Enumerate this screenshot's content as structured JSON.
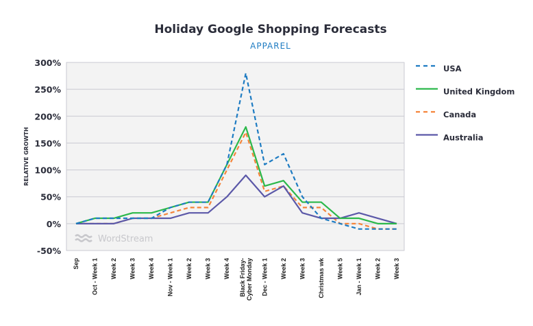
{
  "chart_data": {
    "type": "line",
    "title": "Holiday Google Shopping Forecasts",
    "subtitle": "APPAREL",
    "ylabel": "RELATIVE GROWTH",
    "xlabel": "",
    "ylim": [
      -50,
      300
    ],
    "yticks": [
      "-50%",
      "0%",
      "50%",
      "100%",
      "150%",
      "200%",
      "250%",
      "300%"
    ],
    "ytick_values": [
      -50,
      0,
      50,
      100,
      150,
      200,
      250,
      300
    ],
    "grid": true,
    "legend_position": "right",
    "watermark": "WordStream",
    "categories": [
      "Sep",
      "Oct - Week 1",
      "Week 2",
      "Week 3",
      "Week 4",
      "Nov - Week 1",
      "Week 2",
      "Week 3",
      "Week 4",
      "Black Friday-\nCyber Monday",
      "Dec - Week 1",
      "Week 2",
      "Week 3",
      "Christmas wk",
      "Week 5",
      "Jan - Week 1",
      "Week 2",
      "Week 3"
    ],
    "series": [
      {
        "name": "USA",
        "color": "#1d7bc2",
        "dashed": true,
        "values": [
          0,
          10,
          10,
          10,
          10,
          30,
          40,
          40,
          110,
          280,
          110,
          130,
          50,
          10,
          0,
          -10,
          -10,
          -10
        ]
      },
      {
        "name": "United Kingdom",
        "color": "#2bb84a",
        "dashed": false,
        "values": [
          0,
          10,
          10,
          20,
          20,
          30,
          40,
          40,
          110,
          180,
          70,
          80,
          40,
          40,
          10,
          10,
          0,
          0
        ]
      },
      {
        "name": "Canada",
        "color": "#f5843a",
        "dashed": true,
        "values": [
          0,
          0,
          0,
          10,
          10,
          20,
          30,
          30,
          100,
          170,
          60,
          70,
          30,
          30,
          0,
          0,
          -10,
          -10
        ]
      },
      {
        "name": "Australia",
        "color": "#5b58a8",
        "dashed": false,
        "values": [
          0,
          0,
          0,
          10,
          10,
          10,
          20,
          20,
          50,
          90,
          50,
          70,
          20,
          10,
          10,
          20,
          10,
          0
        ]
      }
    ]
  }
}
